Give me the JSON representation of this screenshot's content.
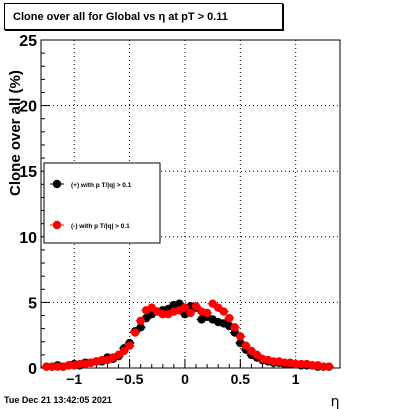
{
  "window": {
    "footer_timestamp": "Tue Dec 21 13:42:05 2021"
  },
  "chart_data": {
    "type": "scatter",
    "title": "Clone  over all for Global vs   η at pT > 0.11",
    "xlabel": "η",
    "ylabel": "Clone  over all (%)",
    "xlim": [
      -1.3,
      1.4
    ],
    "ylim": [
      0,
      25
    ],
    "xticks": [
      -1,
      -0.5,
      0,
      0.5,
      1
    ],
    "xtick_labels": [
      "−1",
      "−0.5",
      "0",
      "0.5",
      "1"
    ],
    "yticks": [
      0,
      5,
      10,
      15,
      20,
      25
    ],
    "ytick_labels": [
      "0",
      "5",
      "10",
      "15",
      "20",
      "25"
    ],
    "grid": true,
    "legend_position": "middle-left",
    "series": [
      {
        "name": "(+) with p T/|q| > 0.1",
        "color": "#000000",
        "x": [
          -1.25,
          -1.2,
          -1.15,
          -1.1,
          -1.05,
          -1.0,
          -0.95,
          -0.9,
          -0.85,
          -0.8,
          -0.75,
          -0.7,
          -0.65,
          -0.6,
          -0.55,
          -0.5,
          -0.45,
          -0.4,
          -0.35,
          -0.3,
          -0.25,
          -0.2,
          -0.15,
          -0.1,
          -0.05,
          0.0,
          0.05,
          0.1,
          0.15,
          0.2,
          0.25,
          0.3,
          0.35,
          0.4,
          0.45,
          0.5,
          0.55,
          0.6,
          0.65,
          0.7,
          0.75,
          0.8,
          0.85,
          0.9,
          0.95,
          1.0,
          1.05,
          1.1,
          1.15,
          1.2,
          1.25,
          1.3
        ],
        "y": [
          0.1,
          0.1,
          0.2,
          0.1,
          0.2,
          0.3,
          0.2,
          0.4,
          0.4,
          0.5,
          0.5,
          0.8,
          0.7,
          0.9,
          1.5,
          1.9,
          2.8,
          3.1,
          3.8,
          4.1,
          4.3,
          4.4,
          4.5,
          4.8,
          4.9,
          4.1,
          4.7,
          4.6,
          3.7,
          3.9,
          3.7,
          3.5,
          3.4,
          3.2,
          2.7,
          1.9,
          1.4,
          1.0,
          0.8,
          0.6,
          0.5,
          0.4,
          0.4,
          0.3,
          0.3,
          0.3,
          0.2,
          0.2,
          0.2,
          0.1,
          0.1,
          0.1
        ]
      },
      {
        "name": "(-) with p T/|q| > 0.1",
        "color": "#ff0000",
        "x": [
          -1.25,
          -1.2,
          -1.15,
          -1.1,
          -1.05,
          -1.0,
          -0.95,
          -0.9,
          -0.85,
          -0.8,
          -0.75,
          -0.7,
          -0.65,
          -0.6,
          -0.55,
          -0.5,
          -0.45,
          -0.4,
          -0.35,
          -0.3,
          -0.25,
          -0.2,
          -0.15,
          -0.1,
          -0.05,
          0.0,
          0.05,
          0.1,
          0.15,
          0.2,
          0.25,
          0.3,
          0.35,
          0.4,
          0.45,
          0.5,
          0.55,
          0.6,
          0.65,
          0.7,
          0.75,
          0.8,
          0.85,
          0.9,
          0.95,
          1.0,
          1.05,
          1.1,
          1.15,
          1.2,
          1.25,
          1.3
        ],
        "y": [
          0.1,
          0.1,
          0.1,
          0.1,
          0.2,
          0.2,
          0.3,
          0.3,
          0.4,
          0.5,
          0.6,
          0.6,
          0.8,
          1.0,
          1.3,
          1.7,
          2.7,
          3.6,
          4.4,
          4.6,
          4.3,
          4.1,
          4.1,
          4.3,
          4.4,
          4.6,
          4.2,
          4.7,
          4.3,
          4.2,
          4.9,
          4.6,
          4.3,
          3.8,
          3.1,
          2.4,
          1.7,
          1.3,
          1.0,
          0.7,
          0.6,
          0.5,
          0.5,
          0.4,
          0.4,
          0.3,
          0.3,
          0.3,
          0.2,
          0.2,
          0.1,
          0.1
        ]
      }
    ]
  }
}
